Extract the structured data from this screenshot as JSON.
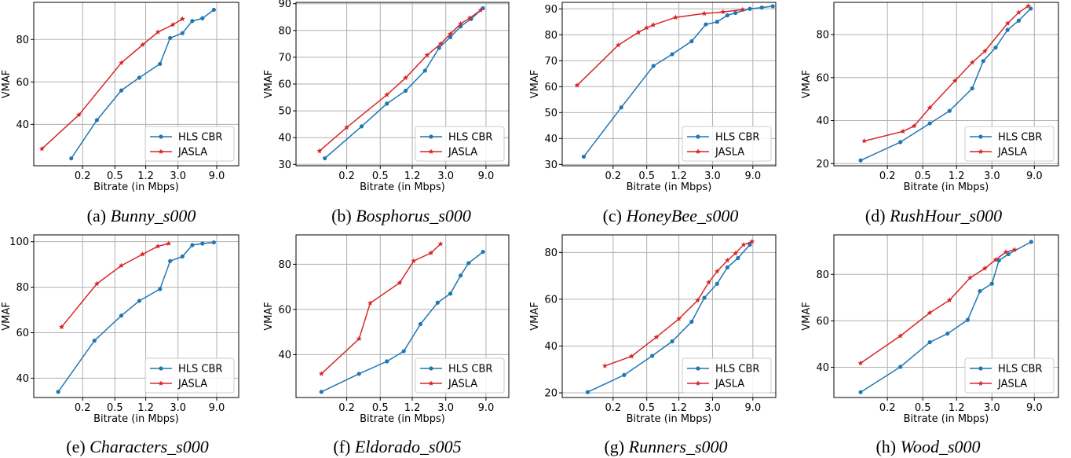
{
  "legend_labels": [
    "HLS CBR",
    "JASLA"
  ],
  "colors": {
    "hls": "#1f77b4",
    "jasla": "#d62728",
    "grid": "#b0b0b0"
  },
  "chart_data": [
    {
      "type": "line",
      "caption_prefix": "(a)",
      "caption_name": "Bunny_s000",
      "title": "",
      "xlabel": "Bitrate (in Mbps)",
      "ylabel": "VMAF",
      "x_scale": "log",
      "x_ticks": [
        "0.2",
        "0.5",
        "1.2",
        "3.0",
        "9.0"
      ],
      "y_ticks": [
        "40",
        "60",
        "80"
      ],
      "ylim": [
        20.5,
        97.5
      ],
      "legend": "lower-right",
      "series": [
        {
          "name": "HLS CBR",
          "x": [
            0.145,
            0.3,
            0.6,
            1.0,
            1.8,
            2.4,
            3.4,
            4.5,
            6.0,
            8.3
          ],
          "y": [
            24,
            42,
            56,
            62,
            68.5,
            80.7,
            83,
            88.7,
            90,
            94
          ]
        },
        {
          "name": "JASLA",
          "x": [
            0.063,
            0.18,
            0.6,
            1.1,
            1.7,
            2.6,
            3.4
          ],
          "y": [
            28.5,
            44.5,
            69,
            77.5,
            83.5,
            87,
            89.7
          ]
        }
      ]
    },
    {
      "type": "line",
      "caption_prefix": "(b)",
      "caption_name": "Bosphorus_s000",
      "title": "",
      "xlabel": "Bitrate (in Mbps)",
      "ylabel": "VMAF",
      "x_scale": "log",
      "x_ticks": [
        "0.2",
        "0.5",
        "1.2",
        "3.0",
        "9.0"
      ],
      "y_ticks": [
        "30",
        "40",
        "50",
        "60",
        "70",
        "80",
        "90"
      ],
      "ylim": [
        29.5,
        90.5
      ],
      "legend": "lower-right",
      "series": [
        {
          "name": "HLS CBR",
          "x": [
            0.11,
            0.3,
            0.6,
            1.0,
            1.7,
            2.5,
            3.4,
            4.5,
            6.0,
            8.3
          ],
          "y": [
            32.3,
            44.2,
            52.7,
            57.5,
            65,
            73.5,
            77.5,
            81.5,
            84.3,
            88.3
          ]
        },
        {
          "name": "JASLA",
          "x": [
            0.095,
            0.2,
            0.6,
            1.0,
            1.8,
            2.6,
            3.4,
            4.5,
            5.8,
            7.8
          ],
          "y": [
            35,
            43.8,
            56,
            62.3,
            70.8,
            75,
            78.7,
            82.5,
            84.7,
            87.6
          ]
        }
      ]
    },
    {
      "type": "line",
      "caption_prefix": "(c)",
      "caption_name": "HoneyBee_s000",
      "title": "",
      "xlabel": "Bitrate (in Mbps)",
      "ylabel": "VMAF",
      "x_scale": "log",
      "x_ticks": [
        "0.2",
        "0.5",
        "1.2",
        "3.0",
        "9.0"
      ],
      "y_ticks": [
        "30",
        "40",
        "50",
        "60",
        "70",
        "80",
        "90"
      ],
      "ylim": [
        29.5,
        92.5
      ],
      "legend": "lower-right",
      "series": [
        {
          "name": "HLS CBR",
          "x": [
            0.09,
            0.25,
            0.6,
            1.0,
            1.7,
            2.5,
            3.4,
            4.5,
            5.6,
            8.3,
            11.5,
            15.5
          ],
          "y": [
            33,
            52,
            68,
            72.5,
            77.5,
            84,
            85,
            87.5,
            88.4,
            90,
            90.5,
            91
          ]
        },
        {
          "name": "JASLA",
          "x": [
            0.075,
            0.23,
            0.4,
            0.5,
            0.6,
            1.1,
            2.4,
            4.0,
            6.8
          ],
          "y": [
            60.5,
            76,
            81,
            82.7,
            83.8,
            86.7,
            88.2,
            88.8,
            89.7
          ]
        }
      ]
    },
    {
      "type": "line",
      "caption_prefix": "(d)",
      "caption_name": "RushHour_s000",
      "title": "",
      "xlabel": "Bitrate (in Mbps)",
      "ylabel": "VMAF",
      "x_scale": "log",
      "x_ticks": [
        "0.2",
        "0.5",
        "1.2",
        "3.0",
        "9.0"
      ],
      "y_ticks": [
        "20",
        "40",
        "60",
        "80"
      ],
      "ylim": [
        19,
        95
      ],
      "legend": "lower-right",
      "series": [
        {
          "name": "HLS CBR",
          "x": [
            0.1,
            0.28,
            0.6,
            1.0,
            1.8,
            2.4,
            3.3,
            4.5,
            6.0,
            8.2
          ],
          "y": [
            21.5,
            30,
            38.7,
            44.5,
            55,
            67.7,
            74,
            82.2,
            86.5,
            92.1
          ]
        },
        {
          "name": "JASLA",
          "x": [
            0.11,
            0.3,
            0.4,
            0.6,
            1.15,
            1.8,
            2.5,
            4.5,
            6.0,
            7.7
          ],
          "y": [
            30.5,
            35,
            37.5,
            46,
            58.5,
            67,
            72.3,
            85.2,
            90.3,
            93.3
          ]
        }
      ]
    },
    {
      "type": "line",
      "caption_prefix": "(e)",
      "caption_name": "Characters_s000",
      "title": "",
      "xlabel": "Bitrate (in Mbps)",
      "ylabel": "VMAF",
      "x_scale": "log",
      "x_ticks": [
        "0.2",
        "0.5",
        "1.2",
        "3.0",
        "9.0"
      ],
      "y_ticks": [
        "40",
        "60",
        "80",
        "100"
      ],
      "ylim": [
        31.5,
        103
      ],
      "legend": "lower-right",
      "series": [
        {
          "name": "HLS CBR",
          "x": [
            0.1,
            0.28,
            0.6,
            1.0,
            1.8,
            2.4,
            3.4,
            4.5,
            6.0,
            8.3
          ],
          "y": [
            34,
            56.5,
            67.5,
            74,
            79.2,
            91.5,
            93.5,
            98.5,
            99.2,
            99.7
          ]
        },
        {
          "name": "JASLA",
          "x": [
            0.11,
            0.3,
            0.6,
            1.1,
            1.7,
            2.3
          ],
          "y": [
            62.5,
            81.5,
            89.5,
            94.5,
            98,
            99.2
          ]
        }
      ]
    },
    {
      "type": "line",
      "caption_prefix": "(f)",
      "caption_name": "Eldorado_s005",
      "title": "",
      "xlabel": "Bitrate (in Mbps)",
      "ylabel": "VMAF",
      "x_scale": "log",
      "x_ticks": [
        "0.2",
        "0.5",
        "1.2",
        "3.0",
        "9.0"
      ],
      "y_ticks": [
        "40",
        "60",
        "80"
      ],
      "ylim": [
        21,
        93
      ],
      "legend": "lower-right",
      "series": [
        {
          "name": "HLS CBR",
          "x": [
            0.1,
            0.28,
            0.6,
            0.95,
            1.5,
            2.4,
            3.4,
            4.5,
            5.6,
            8.3
          ],
          "y": [
            23.5,
            31.5,
            37,
            41.5,
            53.5,
            63,
            67,
            75,
            80.5,
            85.5
          ]
        },
        {
          "name": "JASLA",
          "x": [
            0.1,
            0.28,
            0.38,
            0.85,
            1.25,
            2.0,
            2.6
          ],
          "y": [
            31.5,
            47,
            62.8,
            71.8,
            81.5,
            85,
            89
          ]
        }
      ]
    },
    {
      "type": "line",
      "caption_prefix": "(g)",
      "caption_name": "Runners_s000",
      "title": "",
      "xlabel": "Bitrate (in Mbps)",
      "ylabel": "VMAF",
      "x_scale": "log",
      "x_ticks": [
        "0.2",
        "0.5",
        "1.2",
        "3.0",
        "9.0"
      ],
      "y_ticks": [
        "20",
        "40",
        "60",
        "80"
      ],
      "ylim": [
        18,
        87.5
      ],
      "legend": "lower-right",
      "series": [
        {
          "name": "HLS CBR",
          "x": [
            0.1,
            0.27,
            0.58,
            1.0,
            1.7,
            2.4,
            3.4,
            4.5,
            6.0,
            8.3
          ],
          "y": [
            20.3,
            27.6,
            35.8,
            42,
            50.4,
            60.6,
            66.6,
            73.6,
            77.6,
            83.3
          ]
        },
        {
          "name": "JASLA",
          "x": [
            0.16,
            0.33,
            0.65,
            1.2,
            2.0,
            2.7,
            3.4,
            4.5,
            5.6,
            7.0,
            8.8
          ],
          "y": [
            31.5,
            35.6,
            43.8,
            51.6,
            59.5,
            67.2,
            71.9,
            76.6,
            79.6,
            83.3,
            84.6
          ]
        }
      ]
    },
    {
      "type": "line",
      "caption_prefix": "(h)",
      "caption_name": "Wood_s000",
      "title": "",
      "xlabel": "Bitrate (in Mbps)",
      "ylabel": "VMAF",
      "x_scale": "log",
      "x_ticks": [
        "0.2",
        "0.5",
        "1.2",
        "3.0",
        "9.0"
      ],
      "y_ticks": [
        "40",
        "60",
        "80"
      ],
      "ylim": [
        27,
        97
      ],
      "legend": "lower-right",
      "series": [
        {
          "name": "HLS CBR",
          "x": [
            0.1,
            0.28,
            0.6,
            0.95,
            1.6,
            2.2,
            3.0,
            3.6,
            4.6,
            8.3
          ],
          "y": [
            29.3,
            40.2,
            50.8,
            54.5,
            60.4,
            72.8,
            76,
            86,
            88.7,
            94
          ]
        },
        {
          "name": "JASLA",
          "x": [
            0.1,
            0.28,
            0.6,
            1.0,
            1.7,
            2.5,
            3.3,
            4.3,
            5.4
          ],
          "y": [
            41.8,
            53.5,
            63.5,
            68.9,
            78.5,
            82.6,
            86.3,
            89.6,
            90.6
          ]
        }
      ]
    }
  ]
}
